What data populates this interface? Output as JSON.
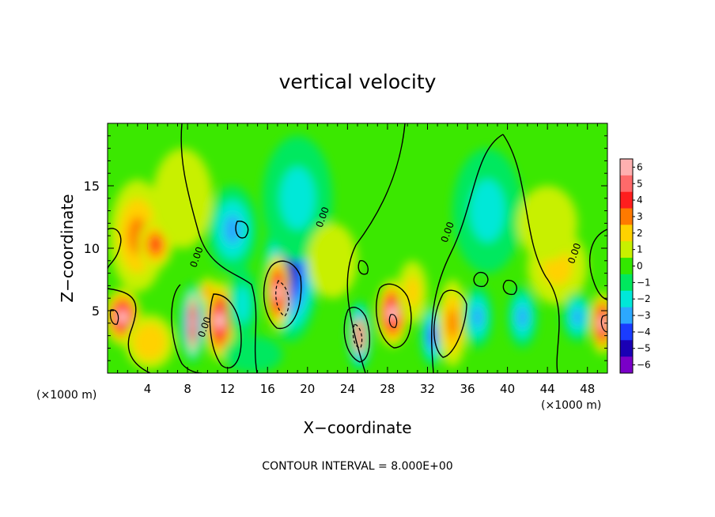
{
  "chart_data": {
    "type": "heatmap",
    "title": "vertical velocity",
    "xlabel": "X−coordinate",
    "ylabel": "Z−coordinate",
    "x_unit_left": "(×1000 m)",
    "x_unit_right": "(×1000 m)",
    "footer": "CONTOUR INTERVAL = 8.000E+00",
    "xlim": [
      0,
      50
    ],
    "ylim": [
      0,
      20
    ],
    "x_ticks": [
      4,
      8,
      12,
      16,
      20,
      24,
      28,
      32,
      36,
      40,
      44,
      48
    ],
    "x_tick_labels": [
      "4",
      "8",
      "12",
      "16",
      "20",
      "24",
      "28",
      "32",
      "36",
      "40",
      "44",
      "48"
    ],
    "y_ticks": [
      5,
      10,
      15
    ],
    "y_tick_labels": [
      "5",
      "10",
      "15"
    ],
    "colorbar": {
      "min": -6,
      "max": 6,
      "labels": [
        "6",
        "5",
        "4",
        "3",
        "2",
        "1",
        "0",
        "−1",
        "−2",
        "−3",
        "−4",
        "−5",
        "−6"
      ],
      "colors": [
        "#ffb0b0",
        "#ff6a6a",
        "#ff1e1e",
        "#ff7a00",
        "#ffd200",
        "#c8f000",
        "#33e800",
        "#00e85e",
        "#00e8d8",
        "#2ca8ff",
        "#1a3cff",
        "#1a00b4",
        "#7a00c8"
      ]
    },
    "contour_labels": [
      {
        "text": "0.00",
        "x": 21.8,
        "y": 12.4
      },
      {
        "text": "0.00",
        "x": 34.3,
        "y": 11.2
      },
      {
        "text": "0.00",
        "x": 47.0,
        "y": 9.5
      },
      {
        "text": "0.00",
        "x": 9.2,
        "y": 9.2
      },
      {
        "text": "0.00",
        "x": 10.0,
        "y": 3.6
      }
    ],
    "cells": [
      {
        "x": 1.5,
        "z": 4.5,
        "v": 6.0,
        "rx": 1.8,
        "rz": 2.3
      },
      {
        "x": 3.0,
        "z": 11.0,
        "v": 2.6,
        "rx": 2.8,
        "rz": 4.5
      },
      {
        "x": 4.8,
        "z": 10.3,
        "v": 4.3,
        "rx": 1.7,
        "rz": 2.0
      },
      {
        "x": 4.2,
        "z": 2.5,
        "v": 2.5,
        "rx": 2.5,
        "rz": 2.2
      },
      {
        "x": 8.5,
        "z": 4.0,
        "v": -5.5,
        "rx": 1.3,
        "rz": 3.2
      },
      {
        "x": 8.5,
        "z": 4.0,
        "v": 6.0,
        "rx": 0.5,
        "rz": 2.5
      },
      {
        "x": 11.2,
        "z": 4.2,
        "v": 6.0,
        "rx": 1.5,
        "rz": 3.2
      },
      {
        "x": 10.0,
        "z": 6.5,
        "v": 3.0,
        "rx": 0.8,
        "rz": 1.2
      },
      {
        "x": 13.5,
        "z": 5.5,
        "v": -1.5,
        "rx": 1.5,
        "rz": 3.0
      },
      {
        "x": 12.5,
        "z": 11.5,
        "v": -2.5,
        "rx": 2.5,
        "rz": 3.5
      },
      {
        "x": 18.3,
        "z": 8.0,
        "v": -5.0,
        "rx": 2.8,
        "rz": 5.5
      },
      {
        "x": 17.0,
        "z": 6.5,
        "v": 6.0,
        "rx": 1.2,
        "rz": 3.0
      },
      {
        "x": 19.0,
        "z": 14.0,
        "v": -1.8,
        "rx": 3.5,
        "rz": 5.0
      },
      {
        "x": 14.5,
        "z": 1.5,
        "v": -1.2,
        "rx": 3.0,
        "rz": 1.5
      },
      {
        "x": 22.5,
        "z": 9.0,
        "v": 1.0,
        "rx": 2.5,
        "rz": 3.0
      },
      {
        "x": 25.2,
        "z": 3.0,
        "v": -6.0,
        "rx": 1.2,
        "rz": 2.8
      },
      {
        "x": 25.2,
        "z": 3.0,
        "v": 6.0,
        "rx": 0.6,
        "rz": 1.5
      },
      {
        "x": 28.5,
        "z": 4.8,
        "v": 6.0,
        "rx": 1.6,
        "rz": 2.7
      },
      {
        "x": 30.5,
        "z": 6.5,
        "v": 2.0,
        "rx": 1.5,
        "rz": 2.5
      },
      {
        "x": 32.5,
        "z": 3.0,
        "v": -3.5,
        "rx": 1.2,
        "rz": 2.5
      },
      {
        "x": 34.5,
        "z": 4.0,
        "v": 3.0,
        "rx": 1.5,
        "rz": 3.5
      },
      {
        "x": 37.0,
        "z": 4.5,
        "v": -3.0,
        "rx": 1.5,
        "rz": 2.5
      },
      {
        "x": 38.0,
        "z": 13.0,
        "v": -1.5,
        "rx": 3.5,
        "rz": 5.0
      },
      {
        "x": 41.5,
        "z": 4.5,
        "v": -2.5,
        "rx": 1.5,
        "rz": 2.5
      },
      {
        "x": 45.0,
        "z": 8.5,
        "v": 1.8,
        "rx": 3.0,
        "rz": 3.0
      },
      {
        "x": 47.0,
        "z": 4.5,
        "v": -3.0,
        "rx": 1.5,
        "rz": 2.0
      },
      {
        "x": 49.5,
        "z": 4.0,
        "v": 6.0,
        "rx": 1.2,
        "rz": 2.5
      },
      {
        "x": 7.5,
        "z": 14.0,
        "v": 1.5,
        "rx": 3.0,
        "rz": 4.0
      },
      {
        "x": 44.0,
        "z": 12.0,
        "v": 1.2,
        "rx": 3.0,
        "rz": 3.0
      }
    ]
  }
}
